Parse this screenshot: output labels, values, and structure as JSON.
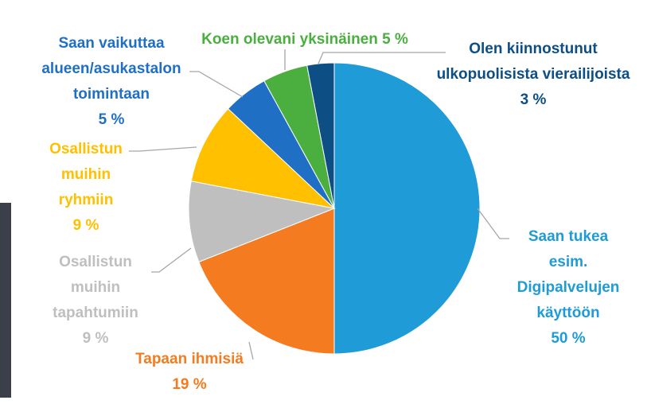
{
  "chart_data": {
    "type": "pie",
    "categories": [
      [
        "Saan tukea",
        "esim.",
        "Digipalvelujen",
        "käyttöön"
      ],
      [
        "Tapaan ihmisiä"
      ],
      [
        "Osallistun",
        "muihin",
        "tapahtumiin"
      ],
      [
        "Osallistun",
        "muihin",
        "ryhmiin"
      ],
      [
        "Saan vaikuttaa",
        "alueen/asukastalon",
        "toimintaan"
      ],
      [
        "Koen olevani yksinäinen"
      ],
      [
        "Olen kiinnostunut",
        "ulkopuolisista vierailijoista"
      ]
    ],
    "values": [
      50,
      19,
      9,
      9,
      5,
      5,
      3
    ],
    "value_labels": [
      "50 %",
      "19 %",
      "9 %",
      "9 %",
      "5 %",
      "5 %",
      "3 %"
    ],
    "colors": [
      "#1f9bd7",
      "#f47b20",
      "#bfbfbf",
      "#ffc000",
      "#1f6fc5",
      "#4aaf3f",
      "#0d4f85"
    ]
  }
}
